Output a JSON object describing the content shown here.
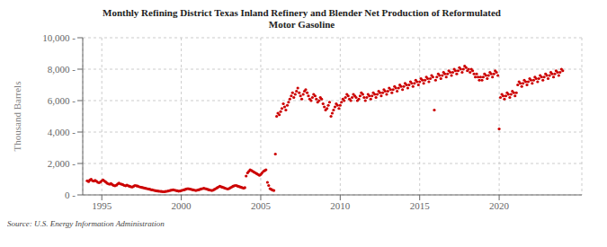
{
  "chart_data": {
    "type": "scatter",
    "title": "Monthly Refining District Texas Inland Refinery and Blender Net Production of Reformulated\nMotor Gasoline",
    "ylabel": "Thousand Barrels",
    "annotations": [
      "Source: U.S. Energy Information Administration"
    ],
    "color": "#cc0000",
    "grid": true,
    "xlim": [
      1993.8,
      2025.2
    ],
    "xticks": [
      1995,
      2000,
      2005,
      2010,
      2015,
      2020
    ],
    "ylim": [
      0,
      10000
    ],
    "yticks": [
      {
        "value": 0,
        "label": "0 -"
      },
      {
        "value": 2000,
        "label": "2,000 -"
      },
      {
        "value": 4000,
        "label": "4,000 -"
      },
      {
        "value": 6000,
        "label": "6,000 -"
      },
      {
        "value": 8000,
        "label": "8,000 -"
      },
      {
        "value": 10000,
        "label": "10,000 -"
      }
    ],
    "x": [
      1994.08,
      1994.17,
      1994.25,
      1994.33,
      1994.42,
      1994.5,
      1994.58,
      1994.67,
      1994.75,
      1994.83,
      1994.92,
      1995.0,
      1995.08,
      1995.17,
      1995.25,
      1995.33,
      1995.42,
      1995.5,
      1995.58,
      1995.67,
      1995.75,
      1995.83,
      1995.92,
      1996.0,
      1996.08,
      1996.17,
      1996.25,
      1996.33,
      1996.42,
      1996.5,
      1996.58,
      1996.67,
      1996.75,
      1996.83,
      1996.92,
      1997.0,
      1997.08,
      1997.17,
      1997.25,
      1997.33,
      1997.42,
      1997.5,
      1997.58,
      1997.67,
      1997.75,
      1997.83,
      1997.92,
      1998.0,
      1998.08,
      1998.17,
      1998.25,
      1998.33,
      1998.42,
      1998.5,
      1998.58,
      1998.67,
      1998.75,
      1998.83,
      1998.92,
      1999.0,
      1999.08,
      1999.17,
      1999.25,
      1999.33,
      1999.42,
      1999.5,
      1999.58,
      1999.67,
      1999.75,
      1999.83,
      1999.92,
      2000.0,
      2000.08,
      2000.17,
      2000.25,
      2000.33,
      2000.42,
      2000.5,
      2000.58,
      2000.67,
      2000.75,
      2000.83,
      2000.92,
      2001.0,
      2001.08,
      2001.17,
      2001.25,
      2001.33,
      2001.42,
      2001.5,
      2001.58,
      2001.67,
      2001.75,
      2001.83,
      2001.92,
      2002.0,
      2002.08,
      2002.17,
      2002.25,
      2002.33,
      2002.42,
      2002.5,
      2002.58,
      2002.67,
      2002.75,
      2002.83,
      2002.92,
      2003.0,
      2003.08,
      2003.17,
      2003.25,
      2003.33,
      2003.42,
      2003.5,
      2003.58,
      2003.67,
      2003.75,
      2003.83,
      2003.92,
      2004.0,
      2004.08,
      2004.17,
      2004.25,
      2004.33,
      2004.42,
      2004.5,
      2004.58,
      2004.67,
      2004.75,
      2004.83,
      2004.92,
      2005.0,
      2005.08,
      2005.17,
      2005.25,
      2005.33,
      2005.42,
      2005.5,
      2005.58,
      2005.67,
      2005.75,
      2005.83,
      2005.92,
      2006.0,
      2006.08,
      2006.17,
      2006.25,
      2006.33,
      2006.42,
      2006.5,
      2006.58,
      2006.67,
      2006.75,
      2006.83,
      2006.92,
      2007.0,
      2007.08,
      2007.17,
      2007.25,
      2007.33,
      2007.42,
      2007.5,
      2007.58,
      2007.67,
      2007.75,
      2007.83,
      2007.92,
      2008.0,
      2008.08,
      2008.17,
      2008.25,
      2008.33,
      2008.42,
      2008.5,
      2008.58,
      2008.67,
      2008.75,
      2008.83,
      2008.92,
      2009.0,
      2009.08,
      2009.17,
      2009.25,
      2009.33,
      2009.42,
      2009.5,
      2009.58,
      2009.67,
      2009.75,
      2009.83,
      2009.92,
      2010.0,
      2010.08,
      2010.17,
      2010.25,
      2010.33,
      2010.42,
      2010.5,
      2010.58,
      2010.67,
      2010.75,
      2010.83,
      2010.92,
      2011.0,
      2011.08,
      2011.17,
      2011.25,
      2011.33,
      2011.42,
      2011.5,
      2011.58,
      2011.67,
      2011.75,
      2011.83,
      2011.92,
      2012.0,
      2012.08,
      2012.17,
      2012.25,
      2012.33,
      2012.42,
      2012.5,
      2012.58,
      2012.67,
      2012.75,
      2012.83,
      2012.92,
      2013.0,
      2013.08,
      2013.17,
      2013.25,
      2013.33,
      2013.42,
      2013.5,
      2013.58,
      2013.67,
      2013.75,
      2013.83,
      2013.92,
      2014.0,
      2014.08,
      2014.17,
      2014.25,
      2014.33,
      2014.42,
      2014.5,
      2014.58,
      2014.67,
      2014.75,
      2014.83,
      2014.92,
      2015.0,
      2015.08,
      2015.17,
      2015.25,
      2015.33,
      2015.42,
      2015.5,
      2015.58,
      2015.67,
      2015.75,
      2015.83,
      2015.92,
      2016.0,
      2016.08,
      2016.17,
      2016.25,
      2016.33,
      2016.42,
      2016.5,
      2016.58,
      2016.67,
      2016.75,
      2016.83,
      2016.92,
      2017.0,
      2017.08,
      2017.17,
      2017.25,
      2017.33,
      2017.42,
      2017.5,
      2017.58,
      2017.67,
      2017.75,
      2017.83,
      2017.92,
      2018.0,
      2018.08,
      2018.17,
      2018.25,
      2018.33,
      2018.42,
      2018.5,
      2018.58,
      2018.67,
      2018.75,
      2018.83,
      2018.92,
      2019.0,
      2019.08,
      2019.17,
      2019.25,
      2019.33,
      2019.42,
      2019.5,
      2019.58,
      2019.67,
      2019.75,
      2019.83,
      2019.92,
      2020.0,
      2020.08,
      2020.17,
      2020.25,
      2020.33,
      2020.42,
      2020.5,
      2020.58,
      2020.67,
      2020.75,
      2020.83,
      2020.92,
      2021.0,
      2021.08,
      2021.17,
      2021.25,
      2021.33,
      2021.42,
      2021.5,
      2021.58,
      2021.67,
      2021.75,
      2021.83,
      2021.92,
      2022.0,
      2022.08,
      2022.17,
      2022.25,
      2022.33,
      2022.42,
      2022.5,
      2022.58,
      2022.67,
      2022.75,
      2022.83,
      2022.92,
      2023.0,
      2023.08,
      2023.17,
      2023.25,
      2023.33,
      2023.42,
      2023.5,
      2023.58,
      2023.67,
      2023.75,
      2023.83,
      2023.92,
      2024.0
    ],
    "values": [
      900,
      850,
      950,
      1000,
      900,
      880,
      920,
      870,
      800,
      780,
      820,
      900,
      950,
      880,
      820,
      750,
      700,
      680,
      720,
      650,
      600,
      580,
      620,
      700,
      750,
      700,
      680,
      650,
      600,
      580,
      620,
      580,
      550,
      520,
      500,
      550,
      600,
      580,
      560,
      530,
      500,
      480,
      460,
      440,
      420,
      400,
      380,
      360,
      340,
      320,
      300,
      280,
      260,
      250,
      240,
      230,
      220,
      210,
      200,
      220,
      230,
      250,
      270,
      290,
      310,
      330,
      300,
      280,
      260,
      240,
      250,
      270,
      300,
      320,
      350,
      380,
      400,
      380,
      360,
      340,
      320,
      300,
      280,
      300,
      320,
      350,
      380,
      400,
      420,
      400,
      380,
      350,
      320,
      300,
      280,
      300,
      350,
      400,
      450,
      500,
      550,
      520,
      490,
      460,
      430,
      400,
      380,
      400,
      450,
      500,
      550,
      580,
      600,
      580,
      550,
      520,
      490,
      460,
      430,
      460,
      1200,
      1400,
      1500,
      1600,
      1550,
      1500,
      1450,
      1400,
      1350,
      1300,
      1250,
      1300,
      1400,
      1500,
      1550,
      1600,
      800,
      600,
      400,
      350,
      300,
      280,
      2600,
      5000,
      5200,
      5100,
      5300,
      5500,
      5800,
      5600,
      5400,
      5700,
      5900,
      6100,
      6300,
      6500,
      6200,
      6400,
      6600,
      6800,
      6500,
      6300,
      6100,
      6400,
      6600,
      6700,
      6500,
      6300,
      6100,
      6000,
      6200,
      6400,
      6300,
      6100,
      5900,
      6000,
      6200,
      6100,
      5800,
      5600,
      5400,
      5500,
      5700,
      5900,
      5000,
      5200,
      5400,
      5600,
      5800,
      5700,
      5500,
      5700,
      5900,
      6100,
      6000,
      6200,
      6400,
      6300,
      6100,
      6000,
      6200,
      6400,
      6300,
      6200,
      6000,
      6100,
      6300,
      6500,
      6400,
      6200,
      6000,
      6200,
      6400,
      6300,
      6100,
      6300,
      6500,
      6400,
      6200,
      6400,
      6600,
      6500,
      6300,
      6500,
      6700,
      6600,
      6400,
      6600,
      6800,
      6700,
      6500,
      6700,
      6900,
      6800,
      6600,
      6800,
      7000,
      6900,
      6700,
      6900,
      7100,
      7000,
      6800,
      7000,
      7200,
      7100,
      6900,
      7100,
      7300,
      7200,
      7000,
      7200,
      7400,
      7300,
      7100,
      7300,
      7500,
      7400,
      7200,
      7400,
      7600,
      7500,
      5400,
      7300,
      7500,
      7700,
      7600,
      7400,
      7600,
      7800,
      7700,
      7500,
      7700,
      7900,
      7800,
      7600,
      7800,
      8000,
      7900,
      7700,
      7900,
      8100,
      8000,
      7800,
      8000,
      8200,
      8100,
      7900,
      8000,
      7800,
      8000,
      7900,
      7700,
      7500,
      7700,
      7500,
      7300,
      7500,
      7300,
      7500,
      7700,
      7600,
      7400,
      7600,
      7800,
      7700,
      7500,
      7700,
      7900,
      7800,
      7600,
      4200,
      6200,
      6400,
      6300,
      6100,
      6300,
      6500,
      6400,
      6200,
      6400,
      6600,
      6500,
      6300,
      6500,
      7000,
      7200,
      7100,
      6900,
      7100,
      7300,
      7200,
      7000,
      7200,
      7400,
      7300,
      7100,
      7300,
      7500,
      7400,
      7200,
      7400,
      7600,
      7500,
      7300,
      7500,
      7700,
      7600,
      7400,
      7600,
      7800,
      7700,
      7500,
      7700,
      7900,
      7800,
      7600,
      7800,
      8000,
      7900
    ]
  }
}
